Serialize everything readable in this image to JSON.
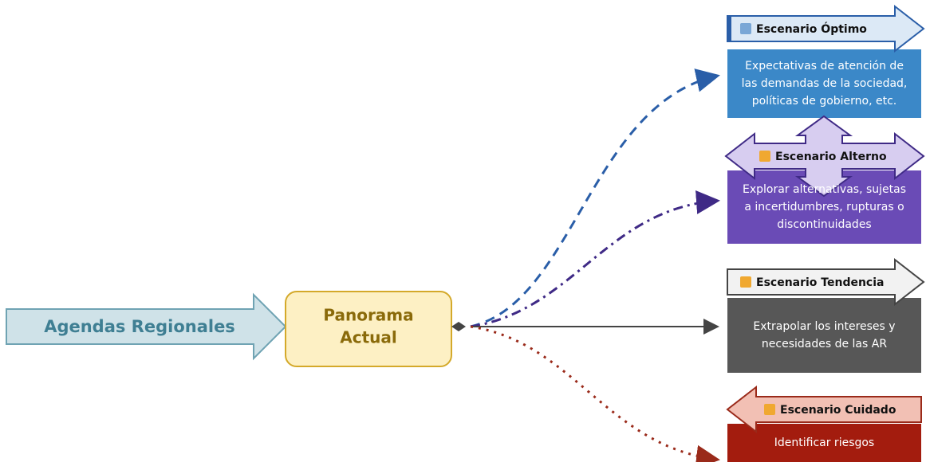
{
  "left": {
    "label": "Agendas Regionales"
  },
  "center": {
    "label": [
      "Panorama",
      "Actual"
    ]
  },
  "scenarios": [
    {
      "title": "Escenario Óptimo",
      "text": [
        "Expectativas de atención de",
        "las demandas de la sociedad,",
        "políticas de gobierno, etc."
      ]
    },
    {
      "title": "Escenario Alterno",
      "text": [
        "Explorar alternativas, sujetas",
        "a incertidumbres, rupturas o",
        "discontinuidades"
      ]
    },
    {
      "title": "Escenario Tendencia",
      "text": [
        "Extrapolar los intereses y",
        "necesidades de las AR"
      ]
    },
    {
      "title": "Escenario Cuidado",
      "text": [
        "Identificar riesgos"
      ]
    }
  ]
}
